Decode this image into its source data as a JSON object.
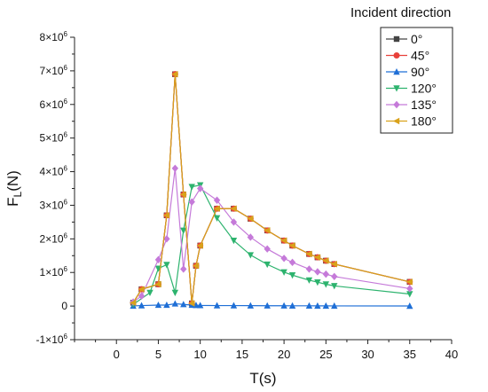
{
  "chart_data": {
    "type": "line",
    "title": "",
    "xlabel": "T(s)",
    "ylabel_main": "F",
    "ylabel_sub": "L",
    "ylabel_unit": "(N)",
    "xlim": [
      -5,
      40
    ],
    "ylim": [
      -1000000,
      8000000
    ],
    "x_ticks": [
      0,
      5,
      10,
      15,
      20,
      25,
      30,
      35,
      40
    ],
    "x_tick_labels": [
      "0",
      "5",
      "10",
      "15",
      "20",
      "25",
      "30",
      "35",
      "40"
    ],
    "y_ticks": [
      -1000000,
      0,
      1000000,
      2000000,
      3000000,
      4000000,
      5000000,
      6000000,
      7000000,
      8000000
    ],
    "y_tick_labels": [
      {
        "base": "-1×10",
        "exp": "6"
      },
      {
        "base": "0",
        "exp": ""
      },
      {
        "base": "1×10",
        "exp": "6"
      },
      {
        "base": "2×10",
        "exp": "6"
      },
      {
        "base": "3×10",
        "exp": "6"
      },
      {
        "base": "4×10",
        "exp": "6"
      },
      {
        "base": "5×10",
        "exp": "6"
      },
      {
        "base": "6×10",
        "exp": "6"
      },
      {
        "base": "7×10",
        "exp": "6"
      },
      {
        "base": "8×10",
        "exp": "6"
      }
    ],
    "legend_title": "Incident  direction",
    "legend_position": "top-right",
    "grid": false,
    "series": [
      {
        "name": "0°",
        "color": "#444444",
        "marker": "square",
        "x": [
          2,
          3,
          5,
          6,
          7,
          8,
          9,
          9.5,
          10,
          12,
          14,
          16,
          18,
          20,
          21,
          23,
          24,
          25,
          26,
          35
        ],
        "y": [
          100000,
          500000,
          650000,
          2700000,
          6900000,
          3320000,
          80000,
          1200000,
          1800000,
          2900000,
          2900000,
          2600000,
          2250000,
          1950000,
          1800000,
          1550000,
          1450000,
          1350000,
          1250000,
          720000
        ]
      },
      {
        "name": "45°",
        "color": "#e8413a",
        "marker": "circle",
        "x": [
          2,
          3,
          5,
          6,
          7,
          8,
          9,
          9.5,
          10,
          12,
          14,
          16,
          18,
          20,
          21,
          23,
          24,
          25,
          26,
          35
        ],
        "y": [
          100000,
          500000,
          650000,
          2700000,
          6900000,
          3320000,
          80000,
          1200000,
          1800000,
          2900000,
          2900000,
          2600000,
          2250000,
          1950000,
          1800000,
          1550000,
          1450000,
          1350000,
          1250000,
          720000
        ]
      },
      {
        "name": "90°",
        "color": "#1f6fd6",
        "marker": "triangle-up",
        "x": [
          2,
          3,
          5,
          6,
          7,
          8,
          9,
          9.5,
          10,
          12,
          14,
          16,
          18,
          20,
          21,
          23,
          24,
          25,
          26,
          35
        ],
        "y": [
          5000,
          15000,
          30000,
          30000,
          70000,
          50000,
          30000,
          25000,
          20000,
          15000,
          15000,
          12000,
          10000,
          10000,
          8000,
          8000,
          6000,
          6000,
          5000,
          3000
        ]
      },
      {
        "name": "120°",
        "color": "#2db36e",
        "marker": "triangle-down",
        "x": [
          2,
          4,
          5,
          6,
          7,
          8,
          9,
          10,
          12,
          14,
          16,
          18,
          20,
          21,
          23,
          24,
          25,
          26,
          35
        ],
        "y": [
          50000,
          400000,
          1120000,
          1230000,
          400000,
          2250000,
          3550000,
          3600000,
          2620000,
          1950000,
          1520000,
          1240000,
          1010000,
          920000,
          770000,
          710000,
          650000,
          600000,
          360000
        ]
      },
      {
        "name": "135°",
        "color": "#c57ad9",
        "marker": "diamond",
        "x": [
          2,
          3,
          5,
          6,
          7,
          8,
          9,
          10,
          12,
          14,
          16,
          18,
          20,
          21,
          23,
          24,
          25,
          26,
          35
        ],
        "y": [
          120000,
          300000,
          1380000,
          2000000,
          4100000,
          1100000,
          3100000,
          3500000,
          3150000,
          2500000,
          2050000,
          1700000,
          1420000,
          1300000,
          1100000,
          1020000,
          950000,
          880000,
          520000
        ]
      },
      {
        "name": "180°",
        "color": "#d9a21b",
        "marker": "triangle-left",
        "x": [
          2,
          3,
          5,
          6,
          7,
          8,
          9,
          9.5,
          10,
          12,
          14,
          16,
          18,
          20,
          21,
          23,
          24,
          25,
          26,
          35
        ],
        "y": [
          100000,
          500000,
          650000,
          2700000,
          6900000,
          3320000,
          80000,
          1200000,
          1800000,
          2900000,
          2900000,
          2600000,
          2250000,
          1950000,
          1800000,
          1550000,
          1450000,
          1350000,
          1250000,
          720000
        ]
      }
    ]
  }
}
